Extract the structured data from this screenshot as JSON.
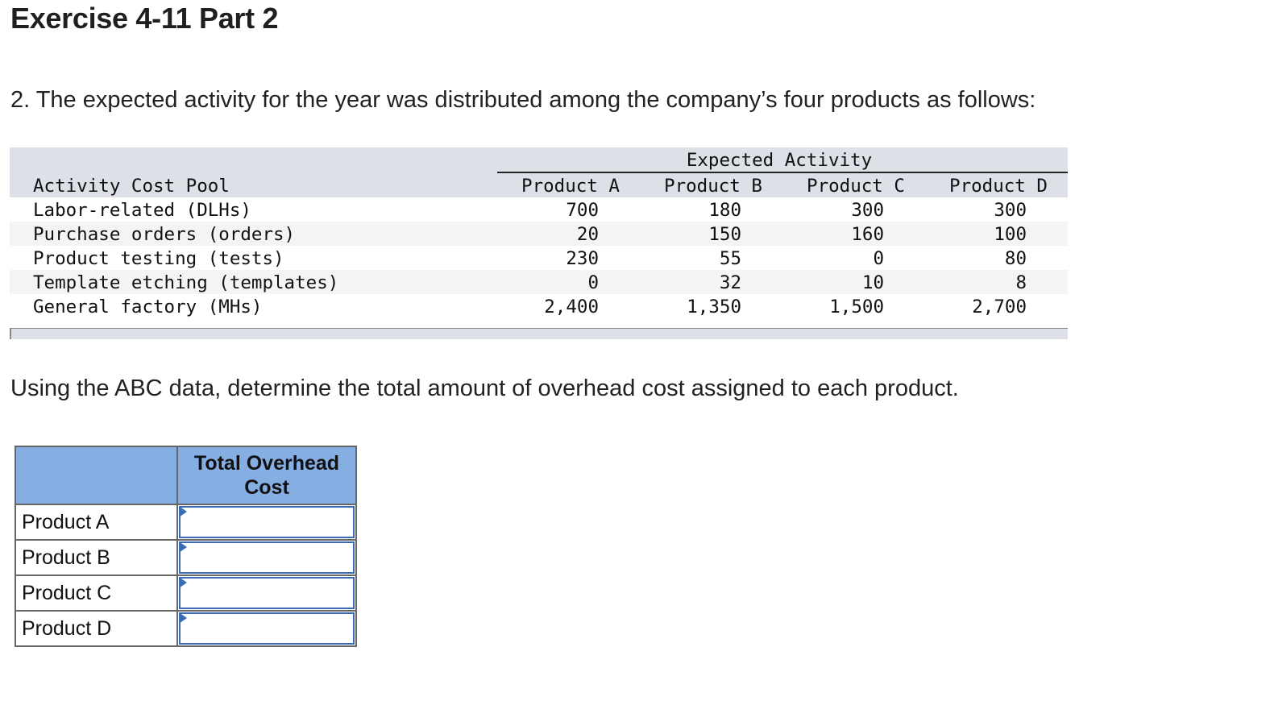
{
  "title": "Exercise 4-11 Part 2",
  "intro": "2. The expected activity for the year was distributed among the company’s four products as follows:",
  "activity_table": {
    "group_header": "Expected Activity",
    "pool_header": "Activity Cost Pool",
    "product_headers": [
      "Product A",
      "Product B",
      "Product C",
      "Product D"
    ],
    "rows": [
      {
        "pool": "Labor-related (DLHs)",
        "values": [
          "700",
          "180",
          "300",
          "300"
        ]
      },
      {
        "pool": "Purchase orders (orders)",
        "values": [
          "20",
          "150",
          "160",
          "100"
        ]
      },
      {
        "pool": "Product testing (tests)",
        "values": [
          "230",
          "55",
          "0",
          "80"
        ]
      },
      {
        "pool": "Template etching (templates)",
        "values": [
          "0",
          "32",
          "10",
          "8"
        ]
      },
      {
        "pool": "General factory (MHs)",
        "values": [
          "2,400",
          "1,350",
          "1,500",
          "2,700"
        ]
      }
    ],
    "colors": {
      "header_band": "#dde0e7",
      "stripe": "#f3f4f6"
    }
  },
  "question": "Using the ABC data, determine the total amount of overhead cost assigned to each product.",
  "answer_table": {
    "header": "Total Overhead Cost",
    "rows": [
      {
        "label": "Product A",
        "value": ""
      },
      {
        "label": "Product B",
        "value": ""
      },
      {
        "label": "Product C",
        "value": ""
      },
      {
        "label": "Product D",
        "value": ""
      }
    ],
    "colors": {
      "header_bg": "#85aee3",
      "input_border": "#3b6bb5"
    }
  }
}
